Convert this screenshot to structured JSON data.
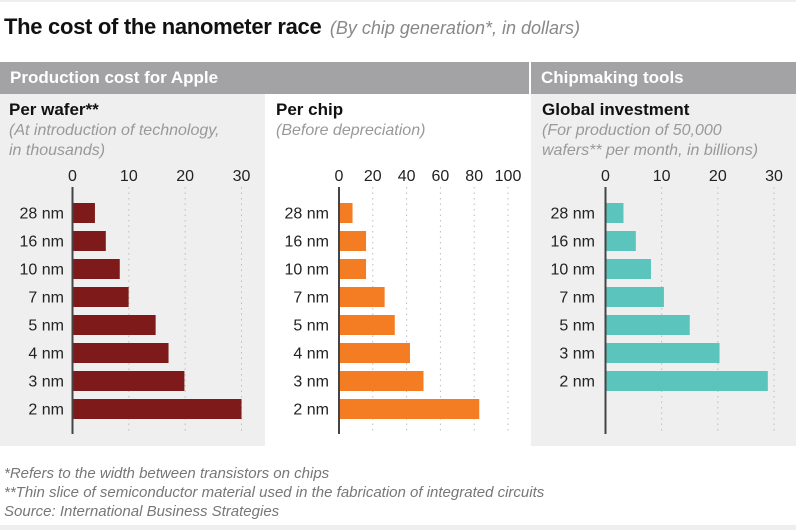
{
  "title": {
    "main": "The cost of the nanometer race",
    "subtitle": "(By chip generation*, in dollars)"
  },
  "headers": {
    "left": "Production cost for Apple",
    "right": "Chipmaking tools"
  },
  "notes": [
    "*Refers to the width between transistors on chips",
    "**Thin slice of semiconductor material used in the fabrication of integrated circuits",
    "Source: International Business Strategies"
  ],
  "colors": {
    "wafer": "#7f1a1a",
    "chip": "#f47c22",
    "investment": "#5bc4bd",
    "header_bg": "#a3a3a5"
  },
  "chart_data": [
    {
      "type": "bar",
      "orientation": "horizontal",
      "title": "Per wafer**",
      "subtitle_lines": [
        "(At introduction of technology,",
        "in thousands)"
      ],
      "categories": [
        "28 nm",
        "16 nm",
        "10 nm",
        "7 nm",
        "5 nm",
        "4 nm",
        "3 nm",
        "2 nm"
      ],
      "values": [
        3.984,
        5.912,
        8.389,
        9.965,
        14.757,
        17.048,
        19.865,
        30.0
      ],
      "xlim": [
        0,
        30
      ],
      "xticks": [
        0,
        10,
        20,
        30
      ],
      "grid": "vertical-dotted",
      "color": "#7f1a1a"
    },
    {
      "type": "bar",
      "orientation": "horizontal",
      "title": "Per chip",
      "subtitle_lines": [
        "(Before depreciation)"
      ],
      "categories": [
        "28 nm",
        "16 nm",
        "10 nm",
        "7 nm",
        "5 nm",
        "4 nm",
        "3 nm",
        "2 nm"
      ],
      "values": [
        8,
        16,
        16,
        27,
        33,
        42,
        50,
        83
      ],
      "xlim": [
        0,
        100
      ],
      "xticks": [
        0,
        20,
        40,
        60,
        80,
        100
      ],
      "grid": "vertical-dotted",
      "color": "#f47c22"
    },
    {
      "type": "bar",
      "orientation": "horizontal",
      "title": "Global investment",
      "subtitle_lines": [
        "(For production of 50,000",
        "wafers** per month, in billions)"
      ],
      "categories": [
        "28 nm",
        "16 nm",
        "10 nm",
        "7 nm",
        "5 nm",
        "3 nm",
        "2 nm"
      ],
      "values": [
        3.2,
        5.4,
        8.1,
        10.4,
        15.0,
        20.3,
        28.9
      ],
      "xlim": [
        0,
        30
      ],
      "xticks": [
        0,
        10,
        20,
        30
      ],
      "grid": "vertical-dotted",
      "color": "#5bc4bd"
    }
  ]
}
